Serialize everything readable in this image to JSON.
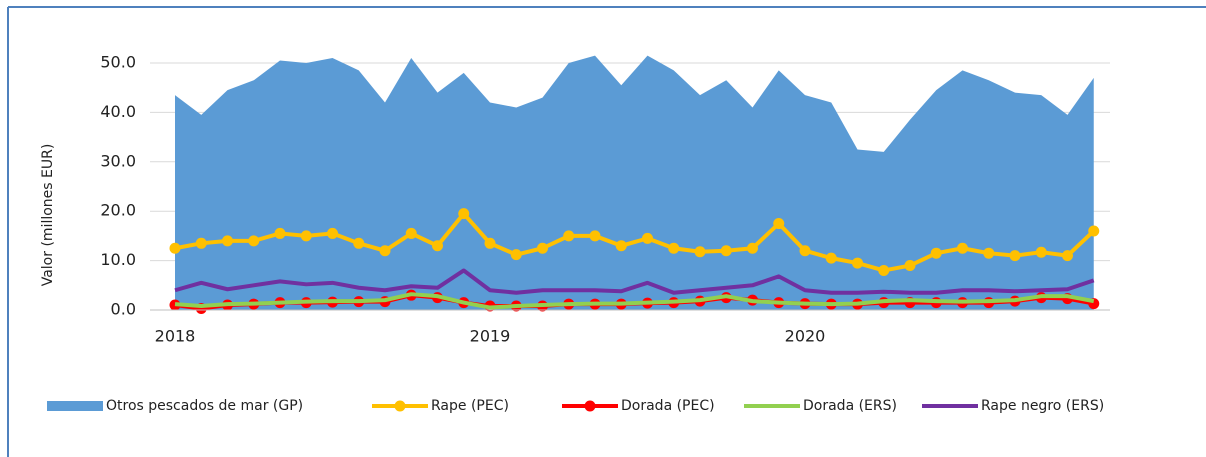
{
  "chart_data": {
    "type": "area_line",
    "y_label": "Valor (millones EUR)",
    "categories": [
      "2018",
      null,
      null,
      null,
      null,
      null,
      null,
      null,
      null,
      null,
      null,
      null,
      "2019",
      null,
      null,
      null,
      null,
      null,
      null,
      null,
      null,
      null,
      null,
      null,
      "2020",
      null,
      null,
      null,
      null,
      null,
      null,
      null,
      null,
      null,
      null,
      null
    ],
    "ylim": [
      0,
      50
    ],
    "yticks": [
      {
        "value": 0,
        "label": "0.0"
      },
      {
        "value": 10,
        "label": "10.0"
      },
      {
        "value": 20,
        "label": "20.0"
      },
      {
        "value": 30,
        "label": "30.0"
      },
      {
        "value": 40,
        "label": "40.0"
      },
      {
        "value": 50,
        "label": "50.0"
      }
    ],
    "grid": true,
    "legend": "bottom",
    "series": [
      {
        "name": "Otros pescados de mar (GP)",
        "kind": "area",
        "color": "#5b9bd5",
        "values": [
          43.5,
          39.5,
          44.5,
          46.5,
          50.5,
          50,
          51,
          48.5,
          42,
          51,
          44,
          48,
          42,
          41,
          43,
          50,
          51.5,
          45.5,
          51.5,
          48.5,
          43.5,
          46.5,
          41,
          48.5,
          43.5,
          42,
          32.5,
          32,
          38.5,
          44.5,
          48.5,
          46.5,
          44,
          43.5,
          39.5,
          47
        ]
      },
      {
        "name": "Rape (PEC)",
        "kind": "line",
        "marker": true,
        "color": "#ffc000",
        "values": [
          12.5,
          13.5,
          14,
          14,
          15.5,
          15,
          15.5,
          13.5,
          12,
          15.5,
          13,
          19.5,
          13.5,
          11.2,
          12.5,
          15,
          15,
          13,
          14.5,
          12.5,
          11.8,
          12,
          12.5,
          17.5,
          12,
          10.5,
          9.5,
          8,
          9,
          11.5,
          12.5,
          11.5,
          11,
          11.7,
          11,
          16
        ]
      },
      {
        "name": "Dorada (PEC)",
        "kind": "line",
        "marker": true,
        "color": "#ff0000",
        "values": [
          1,
          0.3,
          1,
          1.2,
          1.5,
          1.5,
          1.6,
          1.7,
          1.7,
          3,
          2.5,
          1.5,
          0.8,
          0.8,
          0.8,
          1.2,
          1.2,
          1.2,
          1.4,
          1.5,
          1.8,
          2.5,
          2,
          1.5,
          1.3,
          1.2,
          1.2,
          1.5,
          1.5,
          1.5,
          1.5,
          1.5,
          1.8,
          2.5,
          2.3,
          1.3
        ]
      },
      {
        "name": "Dorada (ERS)",
        "kind": "line",
        "marker": false,
        "color": "#92d050",
        "values": [
          1.2,
          0.8,
          1.2,
          1.3,
          1.5,
          1.7,
          1.8,
          1.8,
          2,
          3.2,
          2.8,
          1.5,
          0.5,
          0.8,
          1,
          1.2,
          1.3,
          1.3,
          1.5,
          1.7,
          2,
          2.8,
          1.8,
          1.5,
          1.3,
          1.2,
          1.3,
          1.8,
          2,
          1.8,
          1.7,
          1.8,
          2,
          2.8,
          2.8,
          1.8
        ]
      },
      {
        "name": "Rape negro (ERS)",
        "kind": "line",
        "marker": false,
        "color": "#7030a0",
        "values": [
          4,
          5.5,
          4.2,
          5,
          5.8,
          5.2,
          5.5,
          4.5,
          4,
          4.8,
          4.5,
          8,
          4,
          3.5,
          4,
          4,
          4,
          3.8,
          5.5,
          3.5,
          4,
          4.5,
          5,
          6.8,
          4,
          3.5,
          3.5,
          3.7,
          3.5,
          3.5,
          4,
          4,
          3.8,
          4,
          4.2,
          6
        ]
      }
    ]
  }
}
